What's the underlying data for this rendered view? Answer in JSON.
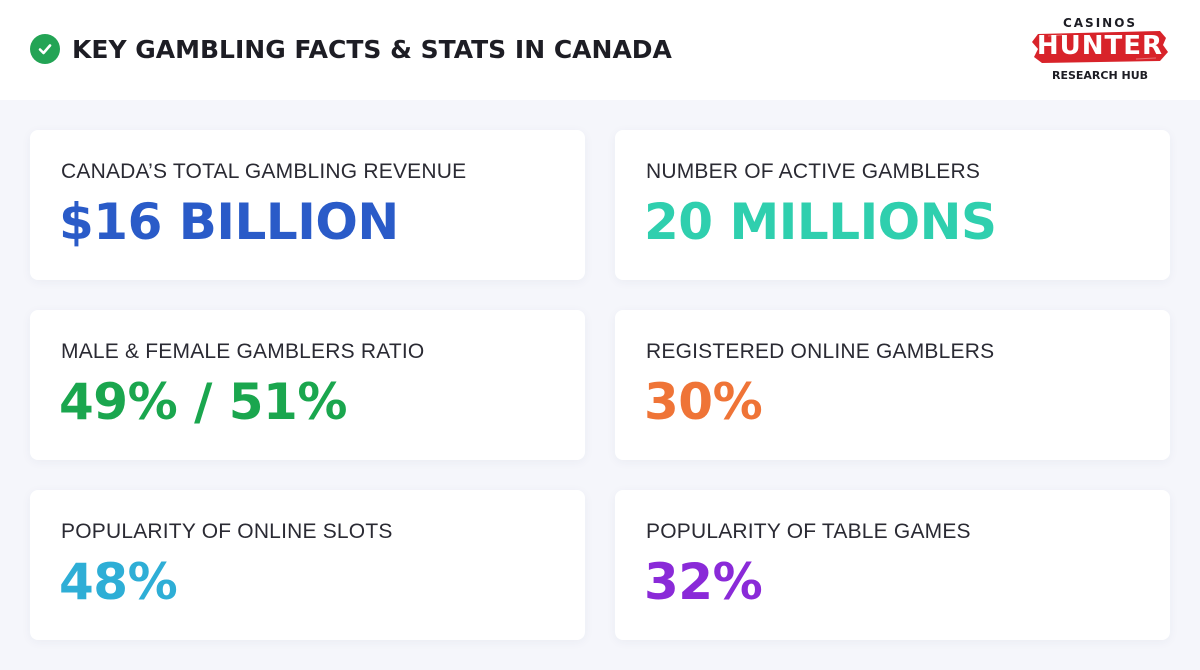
{
  "header": {
    "title": "KEY GAMBLING FACTS & STATS IN CANADA",
    "icon": "check-circle-icon",
    "icon_color": "#23a455"
  },
  "logo": {
    "top": "CASINOS",
    "main": "HUNTER",
    "sub": "RESEARCH HUB",
    "brand_color": "#d8232a"
  },
  "cards": [
    {
      "label": "CANADA’S TOTAL GAMBLING REVENUE",
      "value": "$16 BILLION",
      "color": "#2a5bc8"
    },
    {
      "label": "NUMBER OF ACTIVE GAMBLERS",
      "value": "20 MILLIONS",
      "color": "#2fcfae"
    },
    {
      "label": "MALE & FEMALE GAMBLERS RATIO",
      "value": "49% / 51%",
      "color": "#1aa64e"
    },
    {
      "label": "REGISTERED ONLINE GAMBLERS",
      "value": "30%",
      "color": "#ef7437"
    },
    {
      "label": "POPULARITY OF ONLINE SLOTS",
      "value": "48%",
      "color": "#2eaed6"
    },
    {
      "label": "POPULARITY OF TABLE GAMES",
      "value": "32%",
      "color": "#8a2ad8"
    }
  ]
}
